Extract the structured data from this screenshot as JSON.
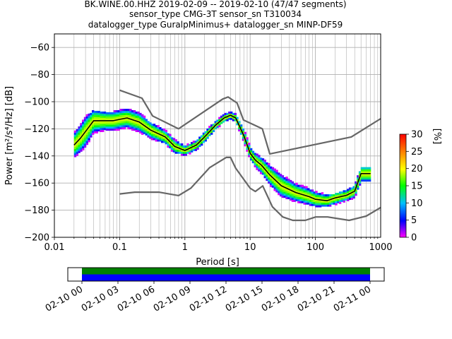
{
  "chart_data": {
    "type": "heatmap",
    "title_lines": [
      "BK.WINE.00.HHZ   2019-02-09 -- 2019-02-10  (47/47 segments)",
      "sensor_type CMG-3T sensor_sn T310034",
      "datalogger_type GuralpMinimus+ datalogger_sn MINP-DF59"
    ],
    "xlabel": "Period [s]",
    "ylabel": "Power [m²/s⁴/Hz] [dB]",
    "x_scale": "log",
    "xlim": [
      0.01,
      1000
    ],
    "ylim": [
      -200,
      -50
    ],
    "x_ticks": [
      0.01,
      0.1,
      1,
      10,
      100,
      1000
    ],
    "x_tick_labels": [
      "0.01",
      "0.1",
      "1",
      "10",
      "100",
      "1000"
    ],
    "y_ticks": [
      -200,
      -180,
      -160,
      -140,
      -120,
      -100,
      -80,
      -60
    ],
    "y_tick_labels": [
      "−200",
      "−180",
      "−160",
      "−140",
      "−120",
      "−100",
      "−80",
      "−60"
    ],
    "grid": true,
    "colorbar": {
      "label": "[%]",
      "range": [
        0,
        30
      ],
      "ticks": [
        0,
        5,
        10,
        15,
        20,
        25,
        30
      ],
      "tick_labels": [
        "0",
        "5",
        "10",
        "15",
        "20",
        "25",
        "30"
      ]
    },
    "mean_curve": {
      "period": [
        0.02,
        0.025,
        0.03,
        0.04,
        0.06,
        0.08,
        0.1,
        0.13,
        0.2,
        0.3,
        0.5,
        0.7,
        1,
        1.5,
        2,
        3,
        4,
        5,
        6,
        8,
        10,
        12,
        15,
        20,
        30,
        50,
        80,
        100,
        150,
        200,
        300,
        400,
        500,
        700
      ],
      "power": [
        -132,
        -127,
        -122,
        -114,
        -114,
        -114,
        -113,
        -112,
        -115,
        -121,
        -126,
        -133,
        -136,
        -132,
        -126,
        -117,
        -112,
        -110,
        -112,
        -125,
        -138,
        -143,
        -147,
        -154,
        -162,
        -167,
        -170,
        -172,
        -173,
        -171,
        -169,
        -166,
        -153,
        -153
      ]
    },
    "spread": {
      "period": [
        0.02,
        0.025,
        0.03,
        0.04,
        0.06,
        0.08,
        0.1,
        0.13,
        0.2,
        0.3,
        0.5,
        0.7,
        1,
        1.5,
        2,
        3,
        4,
        5,
        6,
        8,
        10,
        12,
        15,
        20,
        30,
        50,
        80,
        100,
        150,
        200,
        300,
        400,
        500,
        700
      ],
      "upper": [
        -122,
        -116,
        -110,
        -107,
        -108,
        -108,
        -107,
        -106,
        -109,
        -116,
        -121,
        -128,
        -132,
        -129,
        -122,
        -114,
        -109,
        -108,
        -109,
        -120,
        -133,
        -139,
        -142,
        -147,
        -153,
        -160,
        -163,
        -165,
        -169,
        -168,
        -166,
        -162,
        -149,
        -149
      ],
      "lower": [
        -140,
        -136,
        -132,
        -124,
        -122,
        -122,
        -121,
        -120,
        -123,
        -128,
        -131,
        -138,
        -139,
        -136,
        -130,
        -120,
        -115,
        -113,
        -115,
        -129,
        -142,
        -149,
        -154,
        -161,
        -169,
        -173,
        -175,
        -176,
        -178,
        -177,
        -174,
        -171,
        -161,
        -161
      ]
    },
    "noise_models": {
      "high": {
        "period": [
          0.1,
          0.22,
          0.32,
          0.8,
          3.8,
          4.6,
          6.3,
          7.9,
          15.4,
          20,
          354.8,
          1000
        ],
        "power": [
          -91.5,
          -97.4,
          -110.5,
          -120,
          -98,
          -96.5,
          -101,
          -113.5,
          -120,
          -138.5,
          -126,
          -112.5
        ]
      },
      "low": {
        "period": [
          0.1,
          0.17,
          0.4,
          0.8,
          1.24,
          2.4,
          4.3,
          5,
          6,
          10,
          12,
          15.6,
          21.9,
          31.6,
          45,
          70,
          101,
          154,
          328,
          600,
          1000
        ],
        "power": [
          -168,
          -166.7,
          -166.7,
          -169.2,
          -163.7,
          -148.6,
          -141.1,
          -141.1,
          -149,
          -163.8,
          -166.2,
          -162.1,
          -177.5,
          -185,
          -187.5,
          -187.5,
          -185,
          -185,
          -187.5,
          -184.4,
          -178
        ]
      }
    },
    "timeline": {
      "tick_labels": [
        "02-10 00",
        "02-10 03",
        "02-10 06",
        "02-10 09",
        "02-10 12",
        "02-10 15",
        "02-10 18",
        "02-10 21",
        "02-11 00"
      ],
      "coverage": [
        {
          "color": "#008000",
          "from": "02-10 00",
          "to": "02-11 00"
        },
        {
          "color": "#0000ff",
          "from": "02-10 00",
          "to": "02-11 00"
        }
      ]
    }
  }
}
